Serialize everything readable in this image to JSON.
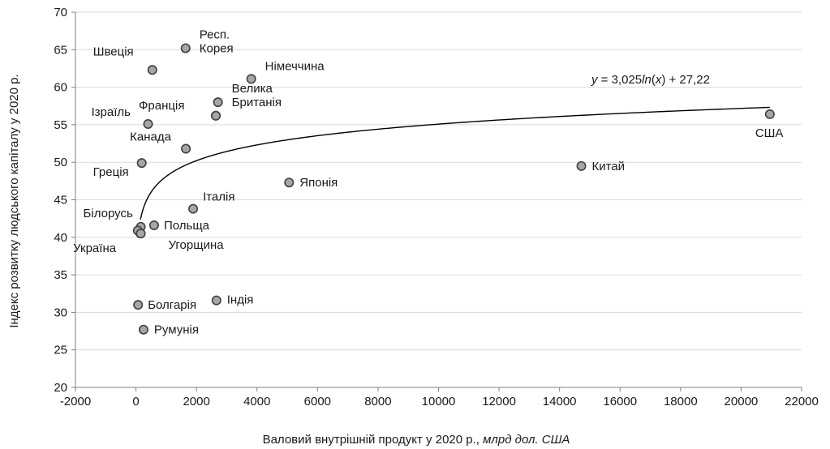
{
  "chart_data": {
    "type": "scatter",
    "xlabel": "Валовий внутрішній продукт у 2020 р.,",
    "xlabel_unit": "млрд дол. США",
    "ylabel": "Індекс розвитку людського капіталу у 2020 р.",
    "xlim": [
      -2000,
      22000
    ],
    "ylim": [
      20,
      70
    ],
    "xticks": [
      -2000,
      0,
      2000,
      4000,
      6000,
      8000,
      10000,
      12000,
      14000,
      16000,
      18000,
      20000,
      22000
    ],
    "yticks": [
      20,
      25,
      30,
      35,
      40,
      45,
      50,
      55,
      60,
      65,
      70
    ],
    "grid": "horizontal",
    "marker_color": "#a6a6a6",
    "marker_edge": "#404040",
    "gridline_color": "#d9d9d9",
    "points": [
      {
        "label": "Швеція",
        "x": 540,
        "y": 62.3
      },
      {
        "label": "Респ. Корея",
        "x": 1640,
        "y": 65.2
      },
      {
        "label": "Німеччина",
        "x": 3810,
        "y": 61.1
      },
      {
        "label": "Велика Британія",
        "x": 2710,
        "y": 58.0
      },
      {
        "label": "",
        "x": 2640,
        "y": 56.2
      },
      {
        "label": "Франція",
        "x": 2640,
        "y": 56.2
      },
      {
        "label": "Ізраїль",
        "x": 400,
        "y": 55.1
      },
      {
        "label": "Канада",
        "x": 1650,
        "y": 51.8
      },
      {
        "label": "Греція",
        "x": 190,
        "y": 49.9
      },
      {
        "label": "США",
        "x": 20950,
        "y": 56.4
      },
      {
        "label": "Китай",
        "x": 14720,
        "y": 49.5
      },
      {
        "label": "Японія",
        "x": 5060,
        "y": 47.3
      },
      {
        "label": "Італія",
        "x": 1890,
        "y": 43.8
      },
      {
        "label": "Польща",
        "x": 600,
        "y": 41.6
      },
      {
        "label": "Білорусь",
        "x": 160,
        "y": 41.4
      },
      {
        "label": "Україна",
        "x": 150,
        "y": 40.5
      },
      {
        "label": "",
        "x": 60,
        "y": 40.9
      },
      {
        "label": "Угорщина",
        "x": 160,
        "y": 40.5
      },
      {
        "label": "Болгарія",
        "x": 70,
        "y": 31.0
      },
      {
        "label": "Індія",
        "x": 2660,
        "y": 31.6
      },
      {
        "label": "Румунія",
        "x": 250,
        "y": 27.7
      }
    ],
    "trendline": {
      "type": "logarithmic",
      "a": 3.025,
      "b": 27.22,
      "x_from": 150,
      "x_to": 20950,
      "equation": {
        "y": "y",
        "eq1": " = 3,025",
        "ln": "ln",
        "p1": "(",
        "x": "x",
        "p2": ") + 27,22"
      }
    }
  }
}
